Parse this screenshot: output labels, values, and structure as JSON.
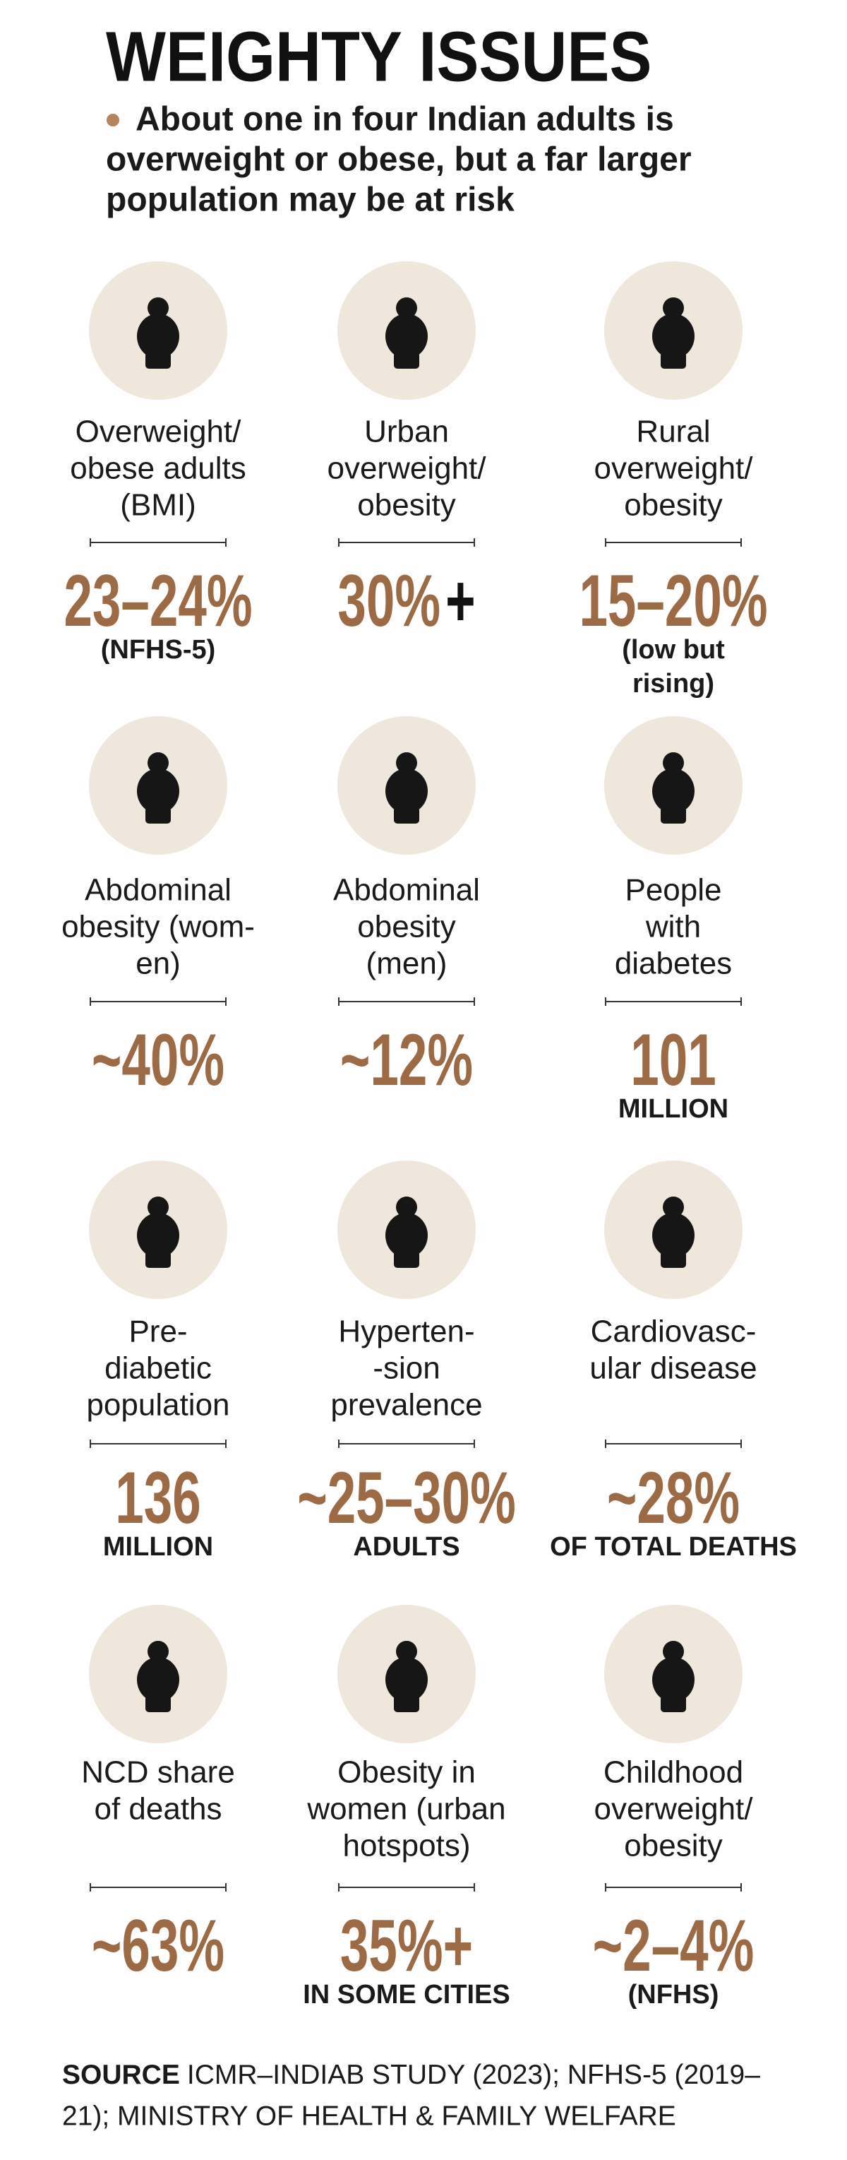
{
  "header": {
    "title": "WEIGHTY ISSUES",
    "subtitle_lines": [
      "About one in four Indian adults is",
      "overweight or obese, but a far larger",
      "population may be at risk"
    ]
  },
  "items": [
    {
      "label": [
        "Overweight/",
        "obese adults",
        "(BMI)"
      ],
      "value": "23–24%",
      "note": [
        "(NFHS-5)"
      ]
    },
    {
      "label": [
        "Urban",
        "overweight/",
        "obesity"
      ],
      "value": "30%",
      "suffix": "+",
      "note": []
    },
    {
      "label": [
        "Rural",
        "overweight/",
        "obesity"
      ],
      "value": "15–20%",
      "note": [
        "(low but",
        "rising)"
      ]
    },
    {
      "label": [
        "Abdominal",
        "obesity (wom-",
        "en)"
      ],
      "value": "~40%",
      "note": []
    },
    {
      "label": [
        "Abdominal",
        "obesity",
        "(men)"
      ],
      "value": "~12%",
      "note": []
    },
    {
      "label": [
        "People",
        "with",
        "diabetes"
      ],
      "value": "101",
      "note": [
        "MILLION"
      ]
    },
    {
      "label": [
        "Pre-",
        "diabetic",
        "population"
      ],
      "value": "136",
      "note": [
        "MILLION"
      ]
    },
    {
      "label": [
        "Hyperten-",
        "-sion",
        "prevalence"
      ],
      "value": "~25–30%",
      "note": [
        "ADULTS"
      ]
    },
    {
      "label": [
        "Cardiovasc-",
        "ular disease"
      ],
      "value": "~28%",
      "note": [
        "OF TOTAL DEATHS"
      ]
    },
    {
      "label": [
        "NCD share",
        "of deaths"
      ],
      "value": "~63%",
      "note": []
    },
    {
      "label": [
        "Obesity in",
        "women (urban",
        "hotspots)"
      ],
      "value": "35%+",
      "note": [
        "IN SOME CITIES"
      ]
    },
    {
      "label": [
        "Childhood",
        "overweight/",
        "obesity"
      ],
      "value": "~2–4%",
      "note": [
        "(NFHS)"
      ]
    }
  ],
  "source": {
    "label": "SOURCE",
    "lines": [
      "ICMR–INDIAB STUDY (2023); NFHS-5 (2019–",
      "21); MINISTRY OF HEALTH & FAMILY WELFARE"
    ]
  }
}
